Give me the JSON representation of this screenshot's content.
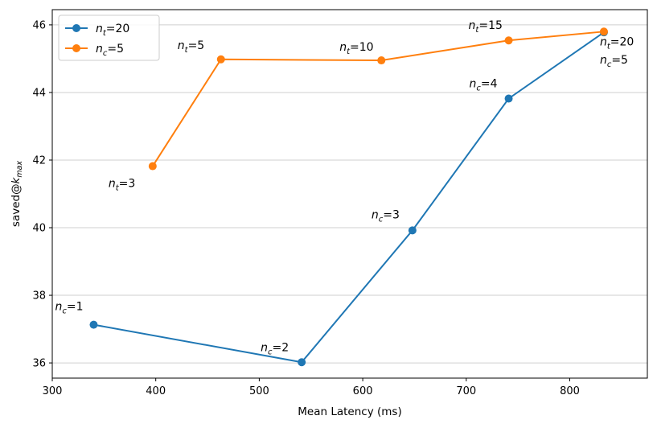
{
  "chart_data": {
    "type": "line",
    "title": "",
    "xlabel": "Mean Latency (ms)",
    "ylabel": "saved@k_max",
    "ylabel_parts": {
      "base": "saved@",
      "var": "k",
      "sub": "max"
    },
    "xlim": [
      300,
      875
    ],
    "ylim": [
      35.55,
      46.45
    ],
    "xticks": [
      300,
      400,
      500,
      600,
      700,
      800
    ],
    "yticks": [
      36,
      38,
      40,
      42,
      44,
      46
    ],
    "grid": "horizontal",
    "legend_position": "top-left",
    "series": [
      {
        "name": "n_t=20",
        "legend": {
          "var": "n",
          "sub": "t",
          "rest": "=20"
        },
        "color": "#1f77b4",
        "points": [
          {
            "x": 340,
            "y": 37.13,
            "label": {
              "var": "n",
              "sub": "c",
              "rest": "=1"
            }
          },
          {
            "x": 541,
            "y": 36.02,
            "label": {
              "var": "n",
              "sub": "c",
              "rest": "=2"
            }
          },
          {
            "x": 648,
            "y": 39.92,
            "label": {
              "var": "n",
              "sub": "c",
              "rest": "=3"
            }
          },
          {
            "x": 741,
            "y": 43.82,
            "label": {
              "var": "n",
              "sub": "c",
              "rest": "=4"
            }
          },
          {
            "x": 833,
            "y": 45.78,
            "label": {
              "var": "n",
              "sub": "c",
              "rest": "=5"
            }
          }
        ]
      },
      {
        "name": "n_c=5",
        "legend": {
          "var": "n",
          "sub": "c",
          "rest": "=5"
        },
        "color": "#ff7f0e",
        "points": [
          {
            "x": 397,
            "y": 41.82,
            "label": {
              "var": "n",
              "sub": "t",
              "rest": "=3"
            }
          },
          {
            "x": 463,
            "y": 44.98,
            "label": {
              "var": "n",
              "sub": "t",
              "rest": "=5"
            }
          },
          {
            "x": 618,
            "y": 44.95,
            "label": {
              "var": "n",
              "sub": "t",
              "rest": "=10"
            }
          },
          {
            "x": 741,
            "y": 45.54,
            "label": {
              "var": "n",
              "sub": "t",
              "rest": "=15"
            }
          },
          {
            "x": 833,
            "y": 45.8,
            "label": {
              "var": "n",
              "sub": "t",
              "rest": "=20"
            }
          }
        ]
      }
    ]
  }
}
